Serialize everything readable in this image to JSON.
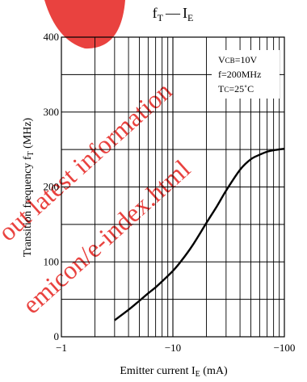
{
  "chart_data": {
    "type": "line",
    "title": {
      "main": "f",
      "main_sub": "T",
      "dash": "—",
      "var": "I",
      "var_sub": "E"
    },
    "xlabel": {
      "main": "Emitter current  I",
      "sub": "E",
      "unit": "  (mA)"
    },
    "ylabel": {
      "main": "Transition frequency  f",
      "sub": "T",
      "unit": "  (MHz)"
    },
    "x_scale": "log",
    "x_axis_magnitude_range": [
      1,
      100
    ],
    "x_ticks": [
      {
        "value": 1,
        "label": "−1"
      },
      {
        "value": 10,
        "label": "−10"
      },
      {
        "value": 100,
        "label": "−100"
      }
    ],
    "ylim": [
      0,
      400
    ],
    "y_ticks": [
      {
        "value": 0,
        "label": "0"
      },
      {
        "value": 100,
        "label": "100"
      },
      {
        "value": 200,
        "label": "200"
      },
      {
        "value": 300,
        "label": "300"
      },
      {
        "value": 400,
        "label": "400"
      }
    ],
    "grid": true,
    "conditions": [
      {
        "main": "V",
        "sub": "CB",
        "value": "=10V"
      },
      {
        "main": "",
        "sub": "",
        "value": "f=200MHz"
      },
      {
        "main": "T",
        "sub": "C",
        "value": "=25˚C"
      }
    ],
    "series": [
      {
        "x": [
          3,
          4,
          5,
          6,
          7,
          8,
          10,
          12,
          15,
          20,
          25,
          30,
          40,
          50,
          60,
          70,
          80,
          100
        ],
        "y": [
          22,
          36,
          48,
          58,
          66,
          74,
          88,
          102,
          122,
          152,
          175,
          195,
          223,
          237,
          243,
          247,
          249,
          251
        ]
      }
    ]
  },
  "watermark": {
    "text1": "out latest information",
    "text2": "emicon/e-index.html"
  }
}
